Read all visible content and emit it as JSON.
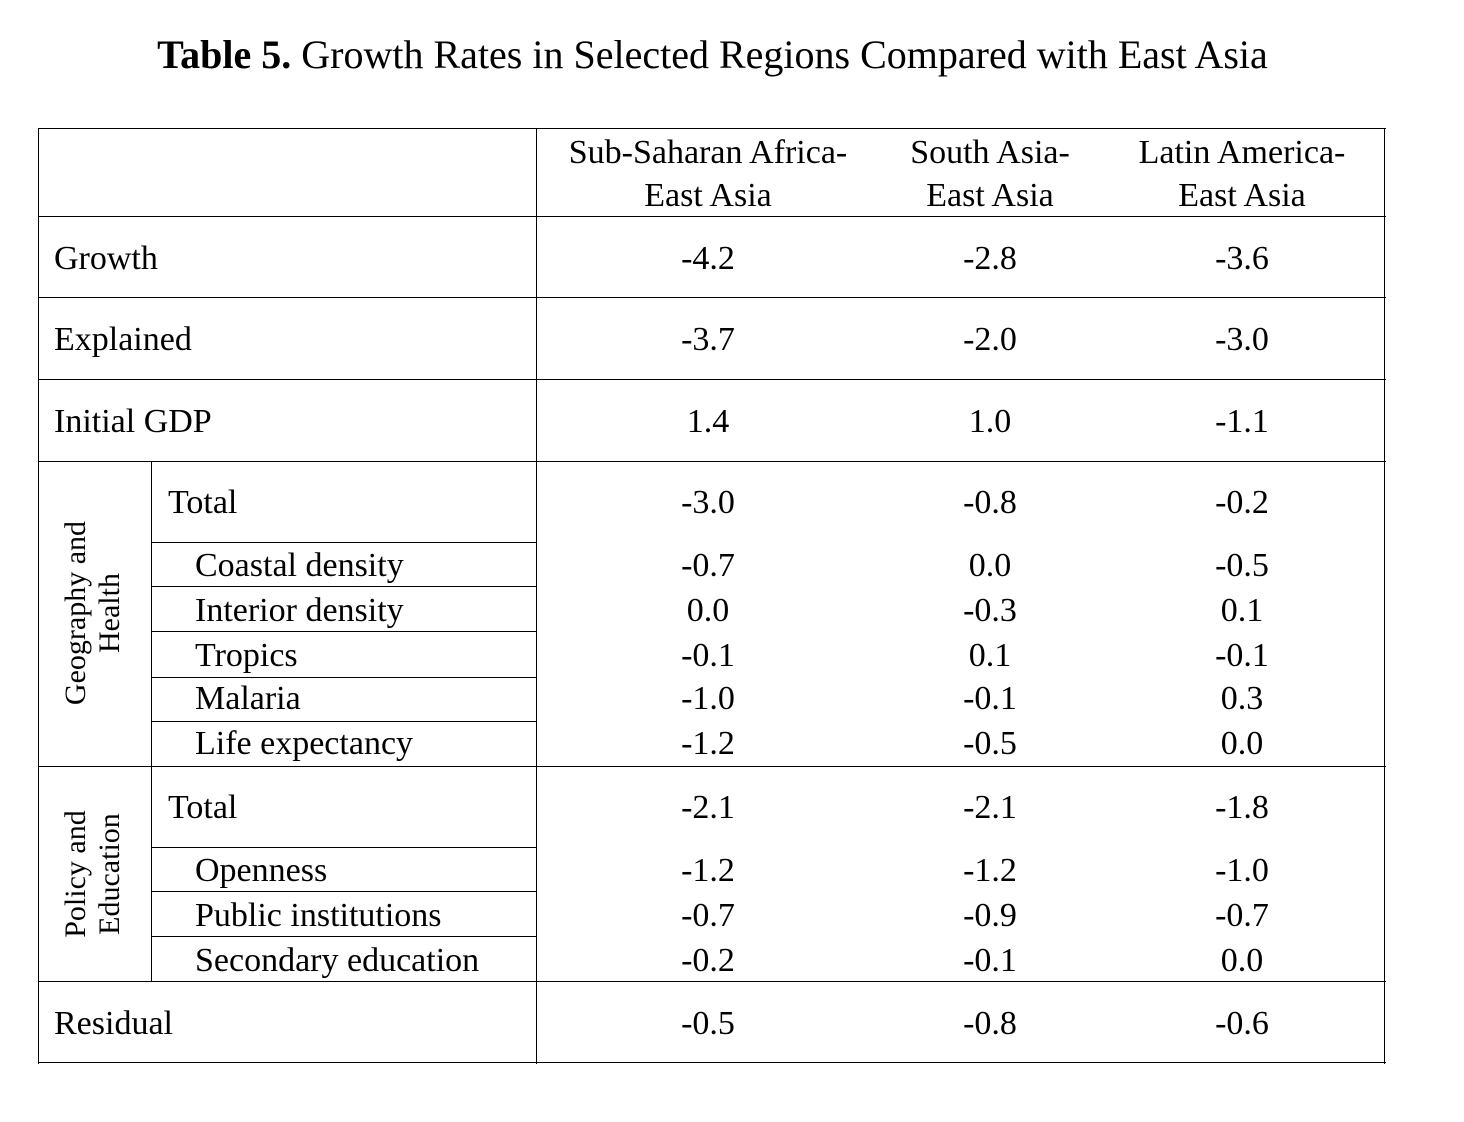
{
  "title": {
    "bold": "Table 5.",
    "rest": " Growth Rates in Selected Regions Compared with East Asia"
  },
  "columns": [
    {
      "line1": "Sub-Saharan Africa-",
      "line2": "East Asia"
    },
    {
      "line1": "South Asia-",
      "line2": "East Asia"
    },
    {
      "line1": "Latin America-",
      "line2": "East Asia"
    }
  ],
  "rows": {
    "growth": {
      "label": "Growth",
      "values": [
        "-4.2",
        "-2.8",
        "-3.6"
      ]
    },
    "explained": {
      "label": "Explained",
      "values": [
        "-3.7",
        "-2.0",
        "-3.0"
      ]
    },
    "initial": {
      "label": "Initial GDP",
      "values": [
        "1.4",
        "1.0",
        "-1.1"
      ]
    },
    "residual": {
      "label": "Residual",
      "values": [
        "-0.5",
        "-0.8",
        "-0.6"
      ]
    }
  },
  "geo": {
    "group_line1": "Geography and",
    "group_line2": "Health",
    "total": {
      "label": "Total",
      "values": [
        "-3.0",
        "-0.8",
        "-0.2"
      ]
    },
    "items": [
      {
        "label": "Coastal density",
        "values": [
          "-0.7",
          "0.0",
          "-0.5"
        ]
      },
      {
        "label": "Interior density",
        "values": [
          "0.0",
          "-0.3",
          "0.1"
        ]
      },
      {
        "label": "Tropics",
        "values": [
          "-0.1",
          "0.1",
          "-0.1"
        ]
      },
      {
        "label": "Malaria",
        "values": [
          "-1.0",
          "-0.1",
          "0.3"
        ]
      },
      {
        "label": "Life expectancy",
        "values": [
          "-1.2",
          "-0.5",
          "0.0"
        ]
      }
    ]
  },
  "policy": {
    "group_line1": "Policy and",
    "group_line2": "Education",
    "total": {
      "label": "Total",
      "values": [
        "-2.1",
        "-2.1",
        "-1.8"
      ]
    },
    "items": [
      {
        "label": "Openness",
        "values": [
          "-1.2",
          "-1.2",
          "-1.0"
        ]
      },
      {
        "label": "Public institutions",
        "values": [
          "-0.7",
          "-0.9",
          "-0.7"
        ]
      },
      {
        "label": "Secondary education",
        "values": [
          "-0.2",
          "-0.1",
          "0.0"
        ]
      }
    ]
  }
}
